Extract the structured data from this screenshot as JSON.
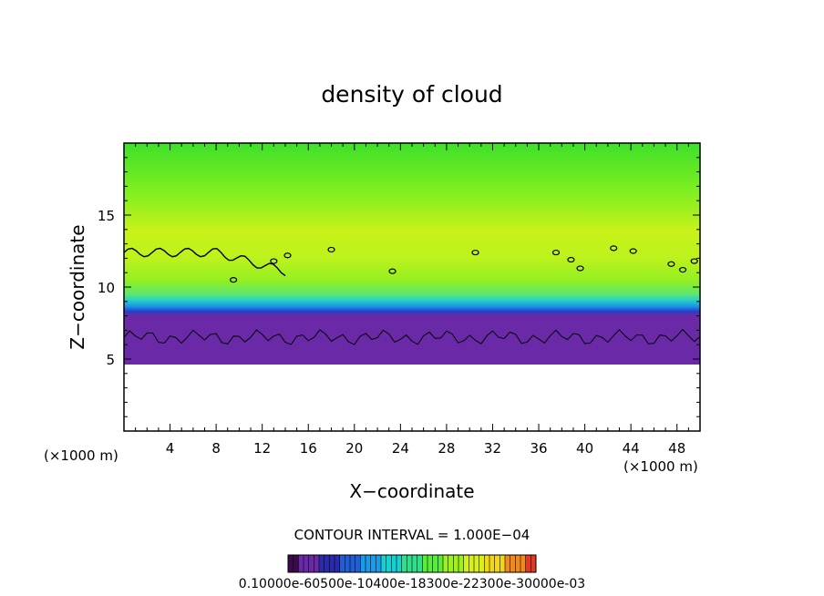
{
  "chart_data": {
    "type": "heatmap",
    "title": "density of cloud",
    "xlabel": "X−coordinate",
    "ylabel": "Z−coordinate",
    "x_unit_label": "(×1000 m)",
    "z_unit_label": "(×1000 m)",
    "xlim": [
      0,
      50
    ],
    "ylim": [
      0,
      20
    ],
    "x_ticks": [
      4,
      8,
      12,
      16,
      20,
      24,
      28,
      32,
      36,
      40,
      44,
      48
    ],
    "x_tick_labels": [
      "4",
      "8",
      "12",
      "16",
      "20",
      "24",
      "28",
      "32",
      "36",
      "40",
      "44",
      "48"
    ],
    "y_ticks": [
      5,
      10,
      15
    ],
    "y_tick_labels": [
      "5",
      "10",
      "15"
    ],
    "contour_interval_text": "CONTOUR INTERVAL = 1.000E−04",
    "colorbar_labels_text": "0.10000e-60500e-10400e-18300e-22300e-30000e-03",
    "colormap": [
      "#3a0a4a",
      "#6a2aa8",
      "#2a2aaa",
      "#1e5fd8",
      "#1a9be8",
      "#18d0d0",
      "#2ee08a",
      "#59ec3a",
      "#9ef020",
      "#d8f018",
      "#f0d818",
      "#f08a20",
      "#e03a20"
    ],
    "cloud_base_z": 5,
    "cloud_layer_top_z": 20,
    "contour_line_z": 6.5
  }
}
